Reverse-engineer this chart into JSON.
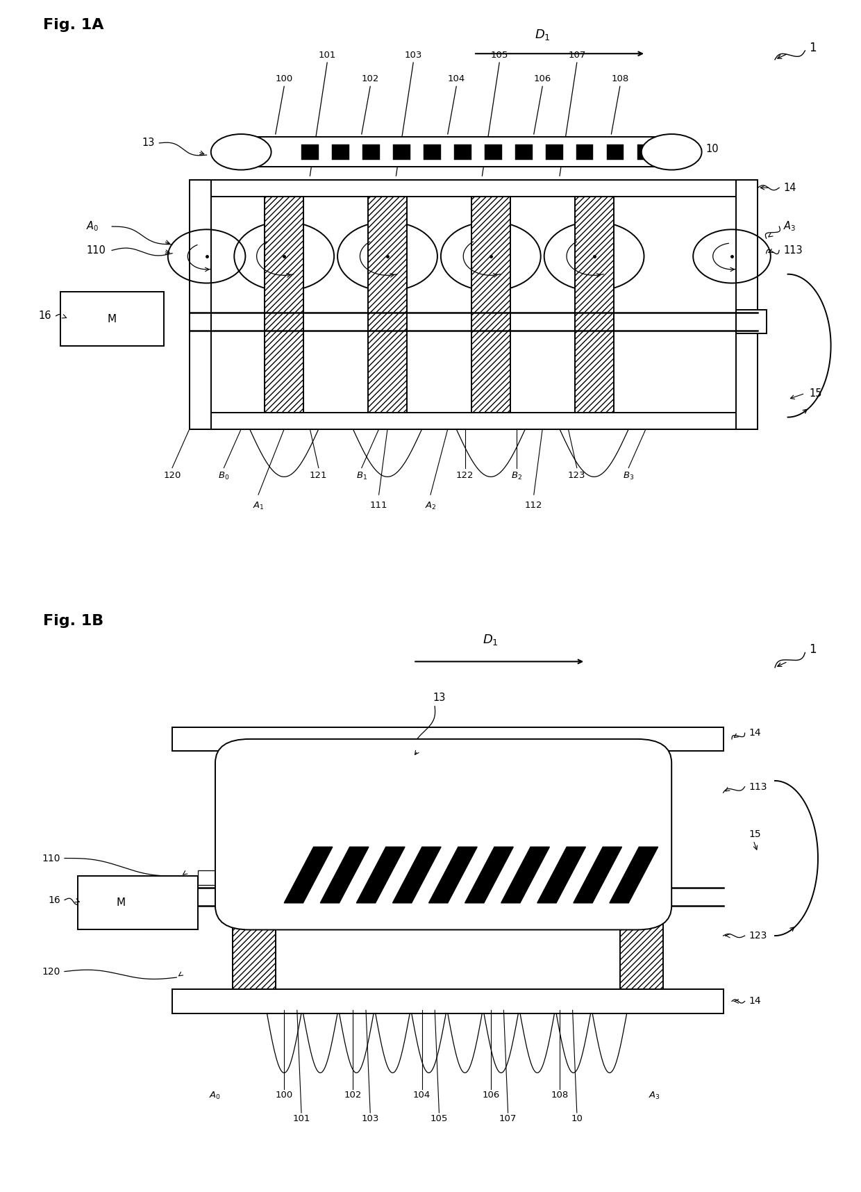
{
  "fig_width": 12.4,
  "fig_height": 17.16,
  "bg_color": "#ffffff",
  "line_color": "#000000",
  "fig1A_label": "Fig. 1A",
  "fig1B_label": "Fig. 1B"
}
